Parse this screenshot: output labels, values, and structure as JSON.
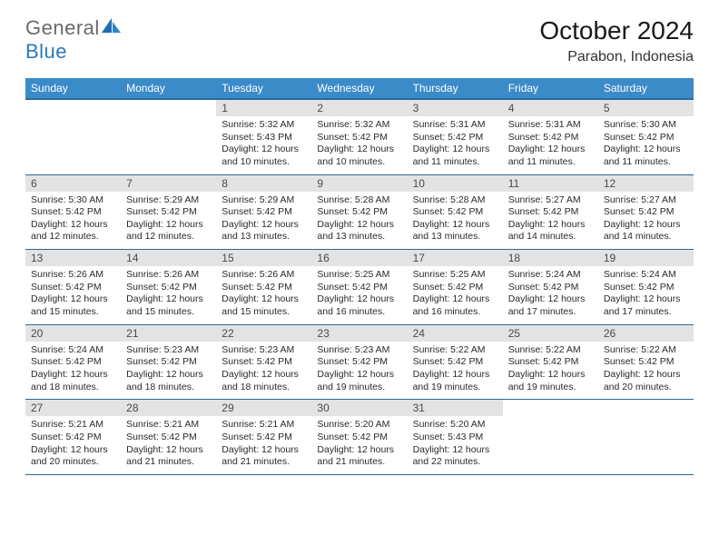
{
  "logo": {
    "general": "General",
    "blue": "Blue"
  },
  "title": {
    "monthYear": "October 2024",
    "location": "Parabon, Indonesia"
  },
  "headerColors": {
    "band": "#3b8bc9",
    "bandBorder": "#2a6a9b",
    "dayBg": "#e3e3e3"
  },
  "weekdays": [
    "Sunday",
    "Monday",
    "Tuesday",
    "Wednesday",
    "Thursday",
    "Friday",
    "Saturday"
  ],
  "weeks": [
    [
      null,
      null,
      {
        "n": "1",
        "sr": "Sunrise: 5:32 AM",
        "ss": "Sunset: 5:43 PM",
        "d1": "Daylight: 12 hours",
        "d2": "and 10 minutes."
      },
      {
        "n": "2",
        "sr": "Sunrise: 5:32 AM",
        "ss": "Sunset: 5:42 PM",
        "d1": "Daylight: 12 hours",
        "d2": "and 10 minutes."
      },
      {
        "n": "3",
        "sr": "Sunrise: 5:31 AM",
        "ss": "Sunset: 5:42 PM",
        "d1": "Daylight: 12 hours",
        "d2": "and 11 minutes."
      },
      {
        "n": "4",
        "sr": "Sunrise: 5:31 AM",
        "ss": "Sunset: 5:42 PM",
        "d1": "Daylight: 12 hours",
        "d2": "and 11 minutes."
      },
      {
        "n": "5",
        "sr": "Sunrise: 5:30 AM",
        "ss": "Sunset: 5:42 PM",
        "d1": "Daylight: 12 hours",
        "d2": "and 11 minutes."
      }
    ],
    [
      {
        "n": "6",
        "sr": "Sunrise: 5:30 AM",
        "ss": "Sunset: 5:42 PM",
        "d1": "Daylight: 12 hours",
        "d2": "and 12 minutes."
      },
      {
        "n": "7",
        "sr": "Sunrise: 5:29 AM",
        "ss": "Sunset: 5:42 PM",
        "d1": "Daylight: 12 hours",
        "d2": "and 12 minutes."
      },
      {
        "n": "8",
        "sr": "Sunrise: 5:29 AM",
        "ss": "Sunset: 5:42 PM",
        "d1": "Daylight: 12 hours",
        "d2": "and 13 minutes."
      },
      {
        "n": "9",
        "sr": "Sunrise: 5:28 AM",
        "ss": "Sunset: 5:42 PM",
        "d1": "Daylight: 12 hours",
        "d2": "and 13 minutes."
      },
      {
        "n": "10",
        "sr": "Sunrise: 5:28 AM",
        "ss": "Sunset: 5:42 PM",
        "d1": "Daylight: 12 hours",
        "d2": "and 13 minutes."
      },
      {
        "n": "11",
        "sr": "Sunrise: 5:27 AM",
        "ss": "Sunset: 5:42 PM",
        "d1": "Daylight: 12 hours",
        "d2": "and 14 minutes."
      },
      {
        "n": "12",
        "sr": "Sunrise: 5:27 AM",
        "ss": "Sunset: 5:42 PM",
        "d1": "Daylight: 12 hours",
        "d2": "and 14 minutes."
      }
    ],
    [
      {
        "n": "13",
        "sr": "Sunrise: 5:26 AM",
        "ss": "Sunset: 5:42 PM",
        "d1": "Daylight: 12 hours",
        "d2": "and 15 minutes."
      },
      {
        "n": "14",
        "sr": "Sunrise: 5:26 AM",
        "ss": "Sunset: 5:42 PM",
        "d1": "Daylight: 12 hours",
        "d2": "and 15 minutes."
      },
      {
        "n": "15",
        "sr": "Sunrise: 5:26 AM",
        "ss": "Sunset: 5:42 PM",
        "d1": "Daylight: 12 hours",
        "d2": "and 15 minutes."
      },
      {
        "n": "16",
        "sr": "Sunrise: 5:25 AM",
        "ss": "Sunset: 5:42 PM",
        "d1": "Daylight: 12 hours",
        "d2": "and 16 minutes."
      },
      {
        "n": "17",
        "sr": "Sunrise: 5:25 AM",
        "ss": "Sunset: 5:42 PM",
        "d1": "Daylight: 12 hours",
        "d2": "and 16 minutes."
      },
      {
        "n": "18",
        "sr": "Sunrise: 5:24 AM",
        "ss": "Sunset: 5:42 PM",
        "d1": "Daylight: 12 hours",
        "d2": "and 17 minutes."
      },
      {
        "n": "19",
        "sr": "Sunrise: 5:24 AM",
        "ss": "Sunset: 5:42 PM",
        "d1": "Daylight: 12 hours",
        "d2": "and 17 minutes."
      }
    ],
    [
      {
        "n": "20",
        "sr": "Sunrise: 5:24 AM",
        "ss": "Sunset: 5:42 PM",
        "d1": "Daylight: 12 hours",
        "d2": "and 18 minutes."
      },
      {
        "n": "21",
        "sr": "Sunrise: 5:23 AM",
        "ss": "Sunset: 5:42 PM",
        "d1": "Daylight: 12 hours",
        "d2": "and 18 minutes."
      },
      {
        "n": "22",
        "sr": "Sunrise: 5:23 AM",
        "ss": "Sunset: 5:42 PM",
        "d1": "Daylight: 12 hours",
        "d2": "and 18 minutes."
      },
      {
        "n": "23",
        "sr": "Sunrise: 5:23 AM",
        "ss": "Sunset: 5:42 PM",
        "d1": "Daylight: 12 hours",
        "d2": "and 19 minutes."
      },
      {
        "n": "24",
        "sr": "Sunrise: 5:22 AM",
        "ss": "Sunset: 5:42 PM",
        "d1": "Daylight: 12 hours",
        "d2": "and 19 minutes."
      },
      {
        "n": "25",
        "sr": "Sunrise: 5:22 AM",
        "ss": "Sunset: 5:42 PM",
        "d1": "Daylight: 12 hours",
        "d2": "and 19 minutes."
      },
      {
        "n": "26",
        "sr": "Sunrise: 5:22 AM",
        "ss": "Sunset: 5:42 PM",
        "d1": "Daylight: 12 hours",
        "d2": "and 20 minutes."
      }
    ],
    [
      {
        "n": "27",
        "sr": "Sunrise: 5:21 AM",
        "ss": "Sunset: 5:42 PM",
        "d1": "Daylight: 12 hours",
        "d2": "and 20 minutes."
      },
      {
        "n": "28",
        "sr": "Sunrise: 5:21 AM",
        "ss": "Sunset: 5:42 PM",
        "d1": "Daylight: 12 hours",
        "d2": "and 21 minutes."
      },
      {
        "n": "29",
        "sr": "Sunrise: 5:21 AM",
        "ss": "Sunset: 5:42 PM",
        "d1": "Daylight: 12 hours",
        "d2": "and 21 minutes."
      },
      {
        "n": "30",
        "sr": "Sunrise: 5:20 AM",
        "ss": "Sunset: 5:42 PM",
        "d1": "Daylight: 12 hours",
        "d2": "and 21 minutes."
      },
      {
        "n": "31",
        "sr": "Sunrise: 5:20 AM",
        "ss": "Sunset: 5:43 PM",
        "d1": "Daylight: 12 hours",
        "d2": "and 22 minutes."
      },
      null,
      null
    ]
  ]
}
